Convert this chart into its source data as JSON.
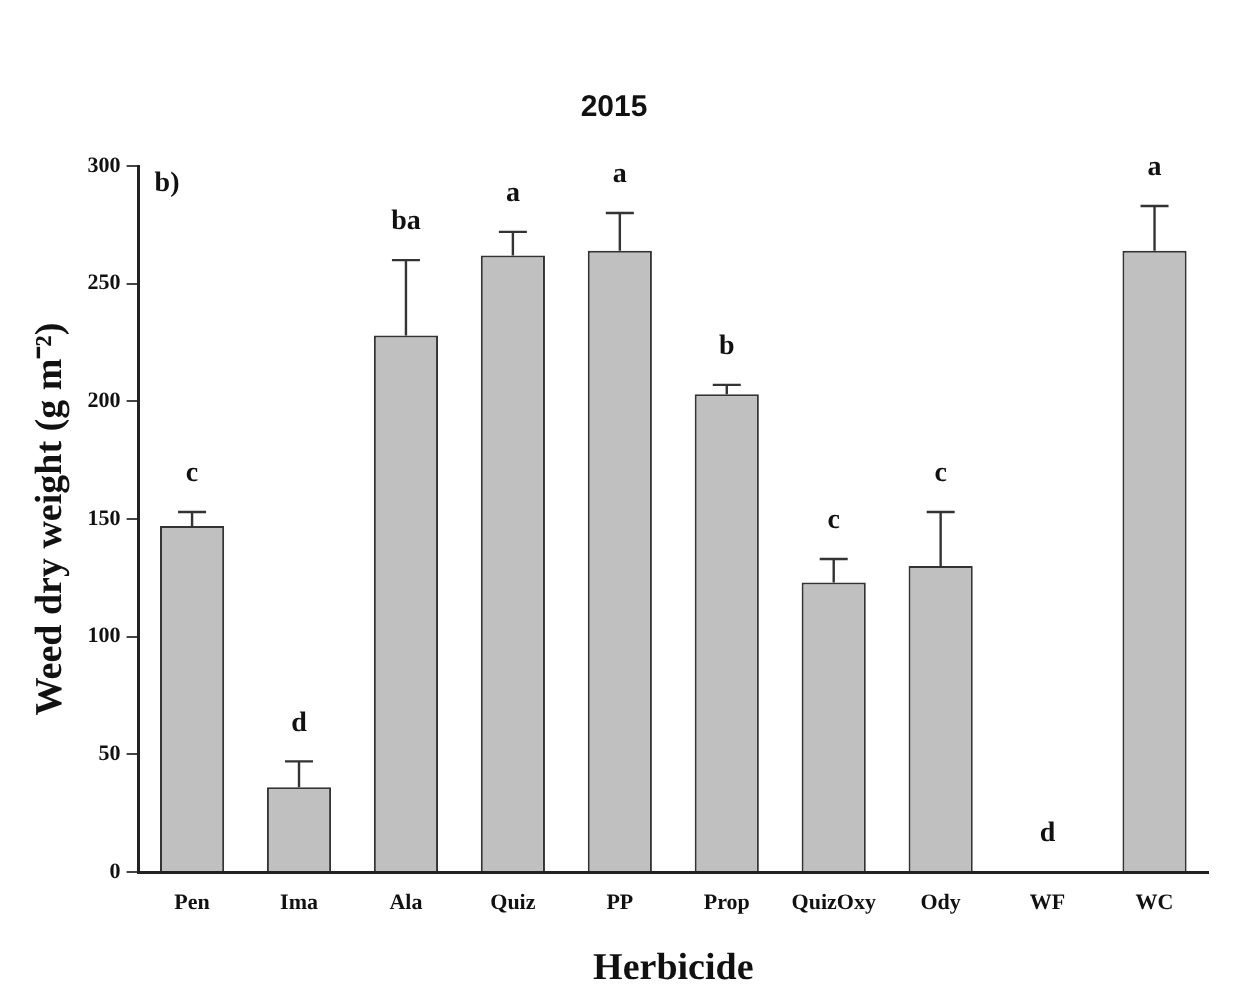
{
  "chart_data": {
    "type": "bar",
    "title": "2015",
    "xlabel": "Herbicide",
    "ylabel": "Weed dry weight (g m⁻²)",
    "categories": [
      "Pen",
      "Ima",
      "Ala",
      "Quiz",
      "PP",
      "Prop",
      "QuizOxy",
      "Ody",
      "WF",
      "WC"
    ],
    "values": [
      147,
      36,
      228,
      262,
      264,
      203,
      123,
      130,
      0,
      264
    ],
    "errors": [
      [
        147,
        153
      ],
      [
        36,
        47
      ],
      [
        228,
        260
      ],
      [
        262,
        272
      ],
      [
        264,
        280
      ],
      [
        203,
        207
      ],
      [
        123,
        133
      ],
      [
        130,
        153
      ],
      null,
      [
        264,
        283
      ]
    ],
    "color": "#c0c0c0",
    "ylim": [
      0,
      300
    ],
    "yticks": [
      0,
      50,
      100,
      150,
      200,
      250,
      300
    ],
    "grid": false,
    "legend": false,
    "annotations": [
      "b)",
      "c",
      "d",
      "ba",
      "a",
      "a",
      "b",
      "c",
      "c",
      "d",
      "a"
    ]
  }
}
